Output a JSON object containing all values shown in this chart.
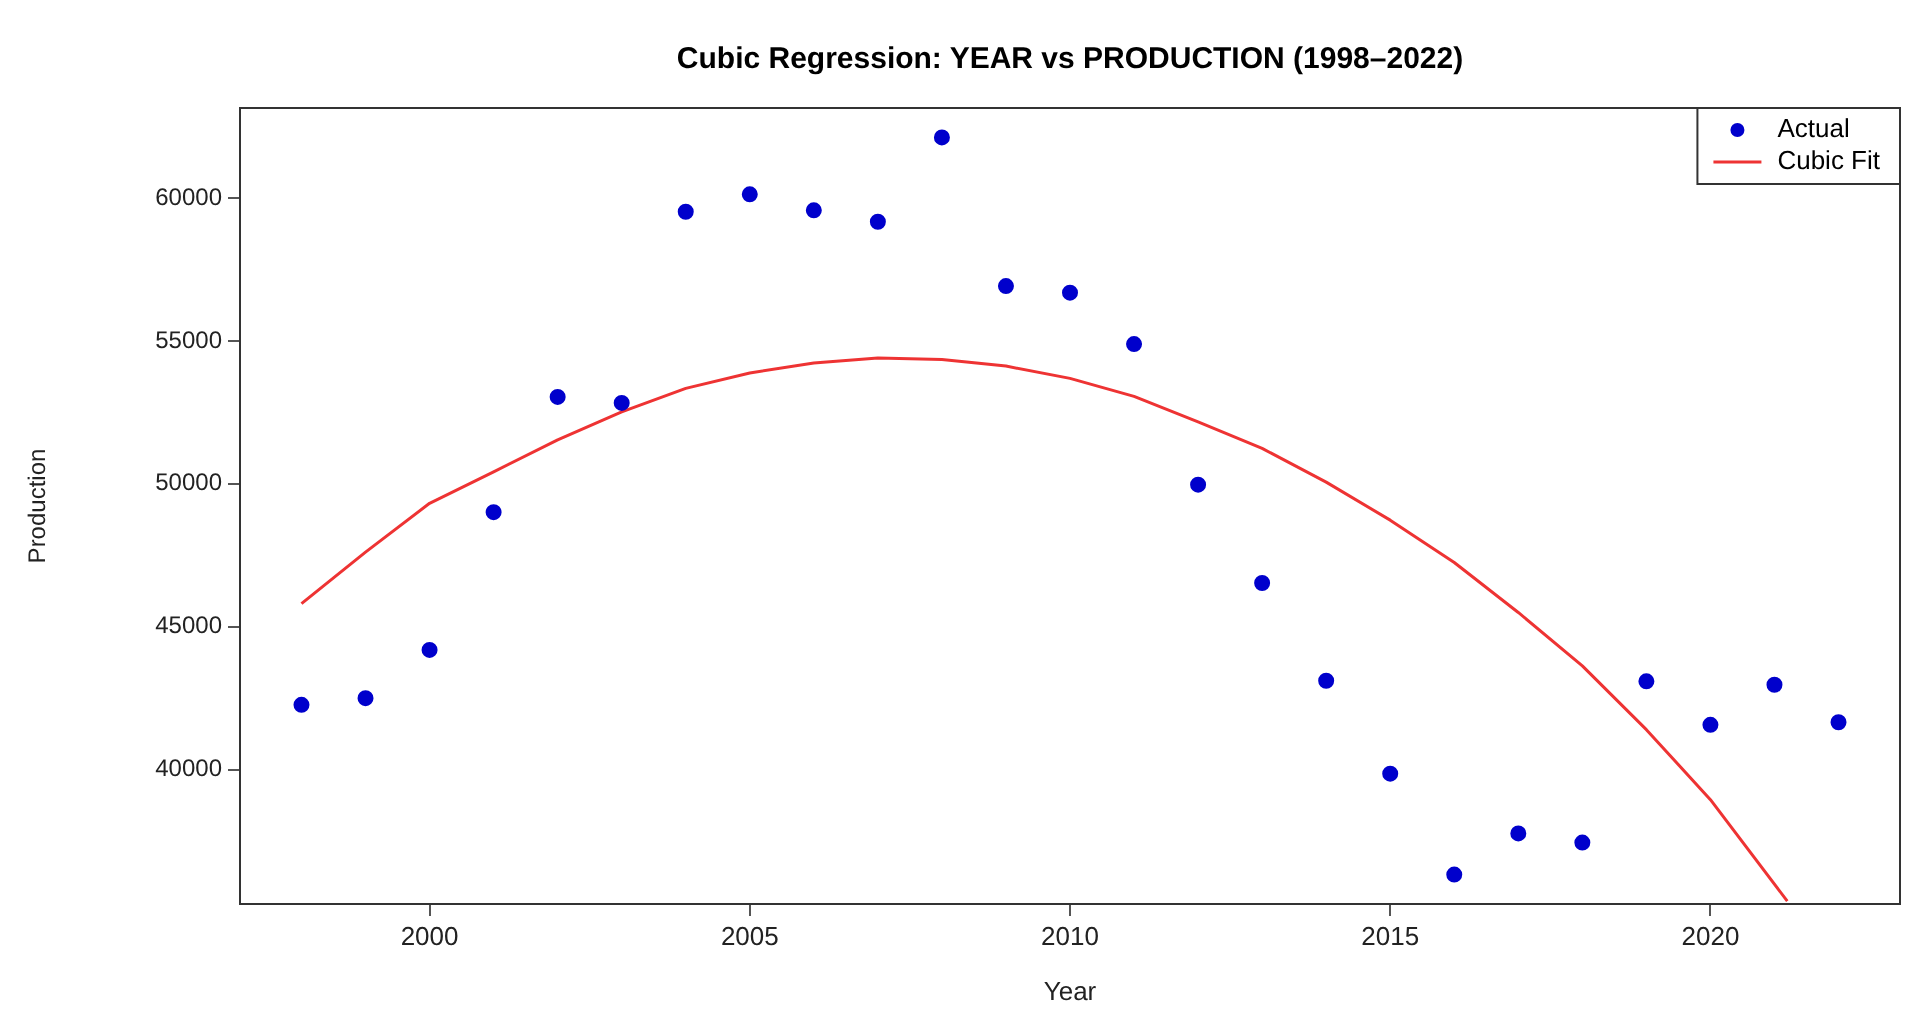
{
  "chart_data": {
    "type": "scatter",
    "title": "Cubic Regression: YEAR vs PRODUCTION (1998–2022)",
    "xlabel": "Year",
    "ylabel": "Production",
    "xlim": [
      1997.04,
      2022.96
    ],
    "ylim": [
      35300,
      63150
    ],
    "xticks": [
      2000,
      2005,
      2010,
      2015,
      2020
    ],
    "yticks": [
      40000,
      45000,
      50000,
      55000,
      60000
    ],
    "legend": "top right",
    "series": [
      {
        "name": "Actual",
        "type": "scatter",
        "marker": "circle",
        "color": "#0000cc",
        "x": [
          1998,
          1999,
          2000,
          2001,
          2002,
          2003,
          2004,
          2005,
          2006,
          2007,
          2008,
          2009,
          2010,
          2011,
          2012,
          2013,
          2014,
          2015,
          2016,
          2017,
          2018,
          2019,
          2020,
          2021,
          2022
        ],
        "values": [
          42270,
          42500,
          44190,
          49010,
          53040,
          52830,
          59520,
          60130,
          59570,
          59170,
          62120,
          56920,
          56690,
          54890,
          49970,
          46530,
          43110,
          39860,
          36330,
          37770,
          37450,
          43090,
          41570,
          42970,
          41660
        ]
      },
      {
        "name": "Cubic Fit",
        "type": "line",
        "marker": "none",
        "line_style": "solid",
        "color": "#ee3333",
        "x": [
          1998,
          1999,
          2000,
          2001,
          2002,
          2003,
          2004,
          2005,
          2006,
          2007,
          2008,
          2009,
          2010,
          2011,
          2012,
          2013,
          2014,
          2015,
          2016,
          2017,
          2018,
          2019,
          2020,
          2021.2
        ],
        "values": [
          45810,
          47610,
          49320,
          50420,
          51540,
          52520,
          53340,
          53880,
          54230,
          54400,
          54350,
          54120,
          53690,
          53060,
          52170,
          51240,
          50060,
          48730,
          47250,
          45500,
          43630,
          41400,
          38950,
          35400
        ]
      }
    ]
  }
}
